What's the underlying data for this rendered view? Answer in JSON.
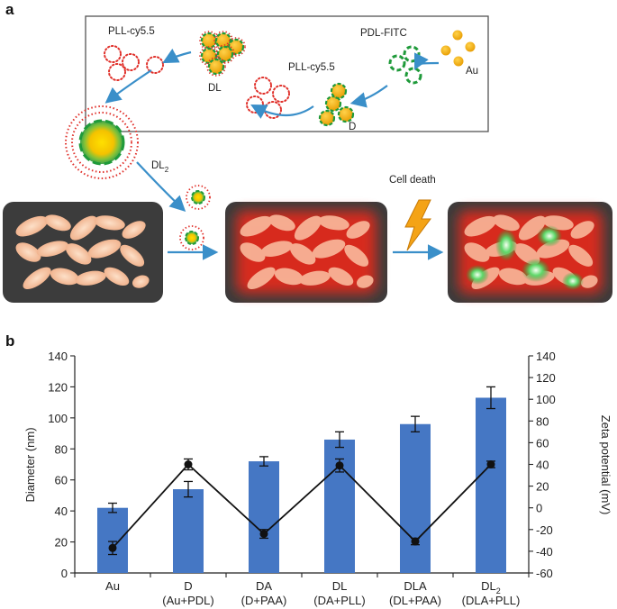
{
  "panel_a": {
    "label": "a",
    "labels": {
      "pll_top_left": "PLL-cy5.5",
      "dl": "DL",
      "pll_mid": "PLL-cy5.5",
      "pdl_fitc": "PDL-FITC",
      "au": "Au",
      "d": "D",
      "dl2_base": "DL",
      "dl2_sub": "2",
      "cell_death": "Cell death"
    },
    "colors": {
      "gold": "#f2b21c",
      "green": "#1f9a3a",
      "red_dot": "#e0302a",
      "arrow": "#3a8fc9",
      "cell": "#f6c6a6",
      "cell_bg": "#3c3c3c",
      "red_glow": "#e02a1c",
      "bolt": "#f4a316"
    }
  },
  "panel_b": {
    "label": "b"
  },
  "chart_data": {
    "type": "bar",
    "categories": [
      [
        "Au",
        ""
      ],
      [
        "D",
        "(Au+PDL)"
      ],
      [
        "DA",
        "(D+PAA)"
      ],
      [
        "DL",
        "(DA+PLL)"
      ],
      [
        "DLA",
        "(DL+PAA)"
      ],
      [
        "DL_2",
        "(DLA+PLL)"
      ]
    ],
    "series": [
      {
        "axis": "left",
        "kind": "bar",
        "color": "#4577c4",
        "values": [
          42,
          54,
          72,
          86,
          96,
          113
        ],
        "errors": [
          3,
          5,
          3,
          5,
          5,
          7
        ]
      },
      {
        "axis": "right",
        "kind": "line",
        "color": "#111111",
        "values": [
          -37,
          40,
          -24,
          39,
          -31,
          40
        ],
        "errors": [
          6,
          5,
          4,
          6,
          3,
          3
        ]
      }
    ],
    "ylabel": "Diameter (nm)",
    "y2label": "Zeta potential (mV)",
    "ylim": [
      0,
      140
    ],
    "y2lim": [
      -60,
      140
    ],
    "yticks": [
      0,
      20,
      40,
      60,
      80,
      100,
      120,
      140
    ],
    "y2ticks": [
      -60,
      -40,
      -20,
      0,
      20,
      40,
      60,
      80,
      100,
      120,
      140
    ]
  }
}
